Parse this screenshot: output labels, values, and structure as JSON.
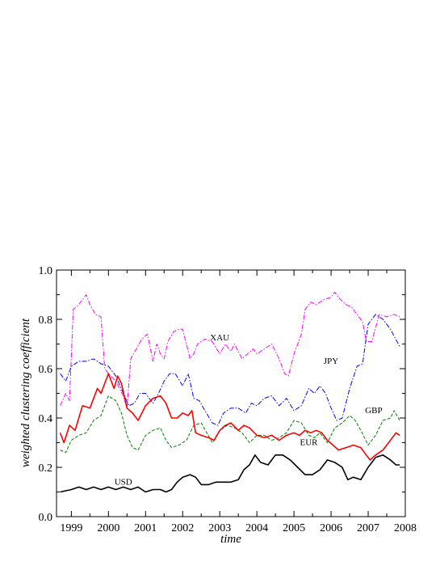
{
  "chart_data": {
    "type": "line",
    "title": "",
    "xlabel": "time",
    "ylabel": "weighted clustering coefficient",
    "xlim": [
      1998.6,
      2008.0
    ],
    "ylim": [
      0.0,
      1.0
    ],
    "x_ticks": [
      1999,
      2000,
      2001,
      2002,
      2003,
      2004,
      2005,
      2006,
      2007,
      2008
    ],
    "y_ticks": [
      0.0,
      0.2,
      0.4,
      0.6,
      0.8,
      1.0
    ],
    "y_tick_labels": [
      "0.0",
      "0.2",
      "0.4",
      "0.6",
      "0.8",
      "1.0"
    ],
    "grid": false,
    "series": [
      {
        "name": "XAU",
        "color": "#ff00ff",
        "dash": "dash-dot",
        "x": [
          1998.7,
          1998.85,
          1998.95,
          1999.05,
          1999.2,
          1999.4,
          1999.5,
          1999.65,
          1999.8,
          1999.9,
          2000.0,
          2000.2,
          2000.4,
          2000.5,
          2000.6,
          2000.75,
          2000.9,
          2001.05,
          2001.2,
          2001.3,
          2001.4,
          2001.5,
          2001.6,
          2001.75,
          2001.9,
          2002.0,
          2002.2,
          2002.3,
          2002.4,
          2002.6,
          2002.8,
          2003.0,
          2003.15,
          2003.3,
          2003.4,
          2003.6,
          2003.75,
          2003.9,
          2004.0,
          2004.2,
          2004.4,
          2004.6,
          2004.75,
          2004.85,
          2005.0,
          2005.2,
          2005.3,
          2005.45,
          2005.6,
          2005.8,
          2006.0,
          2006.1,
          2006.25,
          2006.4,
          2006.55,
          2006.7,
          2006.85,
          2006.95,
          2007.1,
          2007.3,
          2007.5,
          2007.7,
          2007.85
        ],
        "y": [
          0.45,
          0.5,
          0.47,
          0.84,
          0.86,
          0.9,
          0.86,
          0.82,
          0.81,
          0.6,
          0.58,
          0.55,
          0.49,
          0.44,
          0.64,
          0.68,
          0.72,
          0.74,
          0.63,
          0.7,
          0.66,
          0.64,
          0.71,
          0.75,
          0.76,
          0.76,
          0.64,
          0.66,
          0.7,
          0.72,
          0.71,
          0.66,
          0.7,
          0.67,
          0.7,
          0.64,
          0.66,
          0.68,
          0.66,
          0.68,
          0.7,
          0.64,
          0.58,
          0.57,
          0.66,
          0.74,
          0.84,
          0.87,
          0.86,
          0.88,
          0.89,
          0.91,
          0.88,
          0.86,
          0.85,
          0.82,
          0.79,
          0.71,
          0.71,
          0.82,
          0.81,
          0.82,
          0.81
        ]
      },
      {
        "name": "JPY",
        "color": "#0000ff",
        "dash": "dash-dot",
        "x": [
          1998.7,
          1998.85,
          1999.0,
          1999.2,
          1999.4,
          1999.6,
          1999.8,
          2000.0,
          2000.2,
          2000.4,
          2000.55,
          2000.7,
          2000.85,
          2001.0,
          2001.2,
          2001.35,
          2001.5,
          2001.65,
          2001.8,
          2002.0,
          2002.15,
          2002.3,
          2002.45,
          2002.6,
          2002.8,
          2002.95,
          2003.1,
          2003.3,
          2003.5,
          2003.7,
          2003.85,
          2004.0,
          2004.2,
          2004.4,
          2004.6,
          2004.8,
          2005.0,
          2005.2,
          2005.4,
          2005.55,
          2005.7,
          2005.85,
          2006.0,
          2006.15,
          2006.3,
          2006.5,
          2006.7,
          2006.85,
          2007.0,
          2007.2,
          2007.4,
          2007.6,
          2007.85
        ],
        "y": [
          0.58,
          0.55,
          0.61,
          0.63,
          0.63,
          0.64,
          0.62,
          0.61,
          0.57,
          0.5,
          0.45,
          0.46,
          0.5,
          0.5,
          0.46,
          0.5,
          0.55,
          0.58,
          0.58,
          0.53,
          0.58,
          0.48,
          0.47,
          0.43,
          0.38,
          0.37,
          0.42,
          0.44,
          0.44,
          0.42,
          0.46,
          0.45,
          0.48,
          0.49,
          0.45,
          0.48,
          0.43,
          0.45,
          0.52,
          0.5,
          0.53,
          0.5,
          0.44,
          0.39,
          0.4,
          0.52,
          0.61,
          0.62,
          0.78,
          0.82,
          0.8,
          0.76,
          0.69
        ]
      },
      {
        "name": "GBP",
        "color": "#008000",
        "dash": "dash",
        "x": [
          1998.7,
          1998.85,
          1999.0,
          1999.2,
          1999.4,
          1999.6,
          1999.8,
          2000.0,
          2000.2,
          2000.35,
          2000.5,
          2000.65,
          2000.8,
          2001.0,
          2001.2,
          2001.4,
          2001.55,
          2001.7,
          2001.9,
          2002.1,
          2002.3,
          2002.5,
          2002.65,
          2002.8,
          2003.0,
          2003.2,
          2003.4,
          2003.6,
          2003.8,
          2004.0,
          2004.2,
          2004.4,
          2004.6,
          2004.8,
          2005.0,
          2005.2,
          2005.4,
          2005.55,
          2005.7,
          2005.9,
          2006.1,
          2006.3,
          2006.5,
          2006.65,
          2006.8,
          2007.0,
          2007.2,
          2007.4,
          2007.6,
          2007.7,
          2007.85
        ],
        "y": [
          0.27,
          0.26,
          0.31,
          0.33,
          0.34,
          0.39,
          0.41,
          0.49,
          0.47,
          0.42,
          0.33,
          0.28,
          0.27,
          0.33,
          0.35,
          0.36,
          0.31,
          0.28,
          0.29,
          0.31,
          0.37,
          0.38,
          0.34,
          0.3,
          0.35,
          0.37,
          0.36,
          0.34,
          0.3,
          0.33,
          0.33,
          0.31,
          0.32,
          0.34,
          0.39,
          0.38,
          0.33,
          0.32,
          0.34,
          0.3,
          0.36,
          0.38,
          0.41,
          0.39,
          0.35,
          0.29,
          0.33,
          0.39,
          0.4,
          0.43,
          0.39
        ]
      },
      {
        "name": "EUR",
        "color": "#ff0000",
        "dash": "solid",
        "x": [
          1998.7,
          1998.8,
          1998.95,
          1999.1,
          1999.3,
          1999.5,
          1999.7,
          1999.8,
          2000.0,
          2000.15,
          2000.25,
          2000.35,
          2000.5,
          2000.65,
          2000.8,
          2001.0,
          2001.2,
          2001.4,
          2001.55,
          2001.7,
          2001.85,
          2002.0,
          2002.15,
          2002.25,
          2002.35,
          2002.5,
          2002.7,
          2002.85,
          2003.0,
          2003.15,
          2003.3,
          2003.5,
          2003.65,
          2003.8,
          2004.0,
          2004.2,
          2004.4,
          2004.6,
          2004.8,
          2005.0,
          2005.15,
          2005.3,
          2005.45,
          2005.6,
          2005.75,
          2005.9,
          2006.05,
          2006.2,
          2006.4,
          2006.6,
          2006.8,
          2006.95,
          2007.05,
          2007.2,
          2007.4,
          2007.6,
          2007.75,
          2007.85
        ],
        "y": [
          0.34,
          0.3,
          0.37,
          0.35,
          0.45,
          0.44,
          0.52,
          0.5,
          0.58,
          0.52,
          0.57,
          0.54,
          0.44,
          0.42,
          0.39,
          0.45,
          0.48,
          0.49,
          0.46,
          0.4,
          0.4,
          0.42,
          0.41,
          0.43,
          0.34,
          0.33,
          0.32,
          0.31,
          0.35,
          0.37,
          0.38,
          0.35,
          0.37,
          0.36,
          0.33,
          0.32,
          0.33,
          0.31,
          0.33,
          0.34,
          0.33,
          0.35,
          0.34,
          0.35,
          0.34,
          0.31,
          0.29,
          0.27,
          0.28,
          0.29,
          0.28,
          0.25,
          0.23,
          0.25,
          0.27,
          0.31,
          0.34,
          0.33
        ]
      },
      {
        "name": "USD",
        "color": "#000000",
        "dash": "solid",
        "x": [
          1998.7,
          1999.0,
          1999.2,
          1999.4,
          1999.6,
          1999.8,
          2000.0,
          2000.2,
          2000.4,
          2000.6,
          2000.8,
          2001.0,
          2001.2,
          2001.4,
          2001.55,
          2001.7,
          2001.85,
          2002.0,
          2002.2,
          2002.35,
          2002.5,
          2002.7,
          2002.9,
          2003.1,
          2003.3,
          2003.5,
          2003.65,
          2003.8,
          2003.95,
          2004.1,
          2004.3,
          2004.5,
          2004.7,
          2004.9,
          2005.1,
          2005.3,
          2005.5,
          2005.7,
          2005.9,
          2006.1,
          2006.3,
          2006.45,
          2006.6,
          2006.8,
          2007.0,
          2007.2,
          2007.4,
          2007.6,
          2007.75,
          2007.85
        ],
        "y": [
          0.1,
          0.11,
          0.12,
          0.11,
          0.12,
          0.11,
          0.12,
          0.11,
          0.12,
          0.11,
          0.12,
          0.1,
          0.11,
          0.11,
          0.1,
          0.11,
          0.14,
          0.16,
          0.17,
          0.16,
          0.13,
          0.13,
          0.14,
          0.14,
          0.14,
          0.15,
          0.19,
          0.21,
          0.25,
          0.22,
          0.21,
          0.25,
          0.25,
          0.23,
          0.2,
          0.17,
          0.17,
          0.19,
          0.23,
          0.22,
          0.2,
          0.15,
          0.16,
          0.15,
          0.2,
          0.24,
          0.25,
          0.23,
          0.21,
          0.21
        ]
      }
    ],
    "annotations": [
      {
        "text": "XAU",
        "x": 2003.0,
        "y": 0.715
      },
      {
        "text": "JPY",
        "x": 2006.0,
        "y": 0.62
      },
      {
        "text": "GBP",
        "x": 2007.15,
        "y": 0.42
      },
      {
        "text": "EUR",
        "x": 2005.4,
        "y": 0.29
      },
      {
        "text": "USD",
        "x": 2000.4,
        "y": 0.13
      }
    ]
  }
}
